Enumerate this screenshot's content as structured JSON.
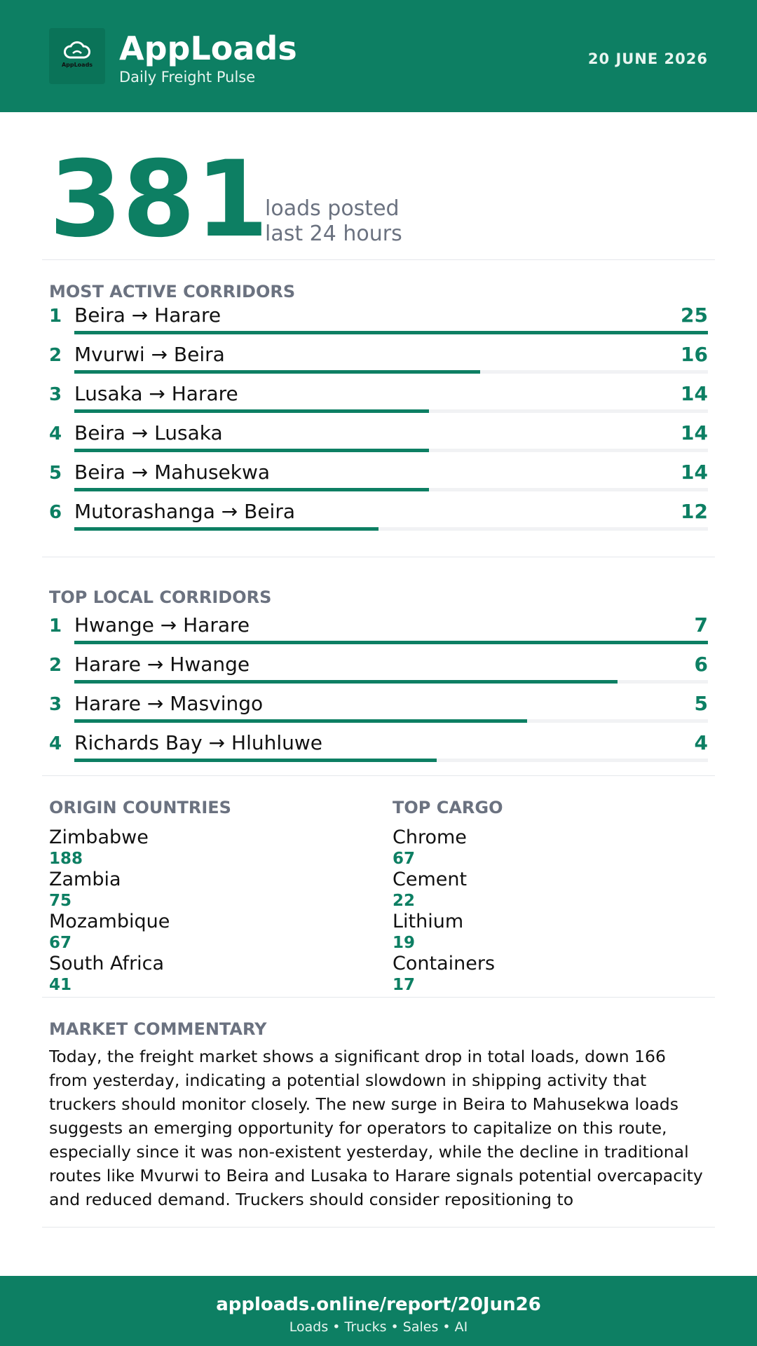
{
  "header": {
    "logo_text": "AppLoads",
    "brand": "AppLoads",
    "tagline": "Daily Freight Pulse",
    "date": "20 JUNE 2026",
    "logo_icon": "cloud-icon"
  },
  "hero": {
    "value": "381",
    "label_line1": "loads posted",
    "label_line2": "last 24 hours"
  },
  "most_active": {
    "title": "MOST ACTIVE CORRIDORS",
    "max": 25,
    "items": [
      {
        "rank": "1",
        "route": "Beira → Harare",
        "count": 25
      },
      {
        "rank": "2",
        "route": "Mvurwi → Beira",
        "count": 16
      },
      {
        "rank": "3",
        "route": "Lusaka → Harare",
        "count": 14
      },
      {
        "rank": "4",
        "route": "Beira → Lusaka",
        "count": 14
      },
      {
        "rank": "5",
        "route": "Beira → Mahusekwa",
        "count": 14
      },
      {
        "rank": "6",
        "route": "Mutorashanga → Beira",
        "count": 12
      }
    ]
  },
  "top_local": {
    "title": "TOP LOCAL CORRIDORS",
    "max": 7,
    "items": [
      {
        "rank": "1",
        "route": "Hwange → Harare",
        "count": 7
      },
      {
        "rank": "2",
        "route": "Harare → Hwange",
        "count": 6
      },
      {
        "rank": "3",
        "route": "Harare → Masvingo",
        "count": 5
      },
      {
        "rank": "4",
        "route": "Richards Bay → Hluhluwe",
        "count": 4
      }
    ]
  },
  "origin_countries": {
    "title": "ORIGIN COUNTRIES",
    "items": [
      {
        "name": "Zimbabwe",
        "value": "188"
      },
      {
        "name": "Zambia",
        "value": "75"
      },
      {
        "name": "Mozambique",
        "value": "67"
      },
      {
        "name": "South Africa",
        "value": "41"
      }
    ]
  },
  "top_cargo": {
    "title": "TOP CARGO",
    "items": [
      {
        "name": "Chrome",
        "value": "67"
      },
      {
        "name": "Cement",
        "value": "22"
      },
      {
        "name": "Lithium",
        "value": "19"
      },
      {
        "name": "Containers",
        "value": "17"
      }
    ]
  },
  "commentary": {
    "title": "MARKET COMMENTARY",
    "text": "Today, the freight market shows a significant drop in total loads, down 166 from yesterday, indicating a potential slowdown in shipping activity that truckers should monitor closely. The new surge in Beira to Mahusekwa loads suggests an emerging opportunity for operators to capitalize on this route, especially since it was non-existent yesterday, while the decline in traditional routes like Mvurwi to Beira and Lusaka to Harare signals potential overcapacity and reduced demand. Truckers should consider repositioning to"
  },
  "footer": {
    "url": "apploads.online/report/20Jun26",
    "tagline": "Loads • Trucks • Sales • AI"
  },
  "colors": {
    "brand": "#0d7f63",
    "muted": "#6b7280",
    "track": "#f1f2f4"
  }
}
